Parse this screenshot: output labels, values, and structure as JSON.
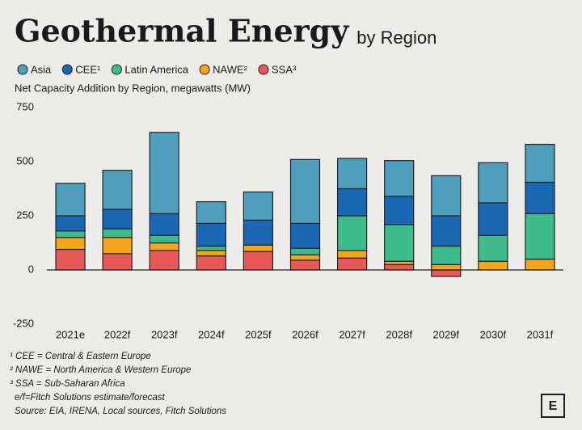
{
  "chart_data": {
    "type": "stacked_bar",
    "title": "Geothermal Energy",
    "title_suffix": "by Region",
    "subtitle": "Net Capacity Addition by Region, megawatts (MW)",
    "categories": [
      "2021e",
      "2022f",
      "2023f",
      "2024f",
      "2025f",
      "2026f",
      "2027f",
      "2028f",
      "2029f",
      "2030f",
      "2031f"
    ],
    "series": [
      {
        "name": "SSA³",
        "color": "#e8595a",
        "values": [
          95,
          75,
          90,
          65,
          85,
          45,
          55,
          25,
          -30,
          0,
          0
        ]
      },
      {
        "name": "NAWE²",
        "color": "#f3a51b",
        "values": [
          55,
          75,
          35,
          25,
          30,
          25,
          35,
          15,
          25,
          40,
          50
        ]
      },
      {
        "name": "Latin America",
        "color": "#3dbc8f",
        "values": [
          30,
          40,
          35,
          20,
          0,
          30,
          160,
          170,
          85,
          120,
          210
        ]
      },
      {
        "name": "CEE¹",
        "color": "#1a68b3",
        "values": [
          70,
          90,
          100,
          105,
          115,
          115,
          125,
          130,
          140,
          150,
          145
        ]
      },
      {
        "name": "Asia",
        "color": "#4f9ebb",
        "values": [
          150,
          180,
          375,
          100,
          130,
          295,
          140,
          165,
          185,
          185,
          175
        ]
      }
    ],
    "legend_order": [
      4,
      3,
      2,
      1,
      0
    ],
    "ylim": [
      -250,
      750
    ],
    "yticks": [
      -250,
      0,
      250,
      500,
      750
    ],
    "notes": [
      "¹ CEE = Central & Eastern Europe",
      "² NAWE = North America & Western Europe",
      "³ SSA = Sub-Saharan Africa",
      "e/f=Fitch Solutions estimate/forecast",
      "Source: EIA, IRENA, Local sources, Fitch Solutions"
    ],
    "logo": "E"
  }
}
